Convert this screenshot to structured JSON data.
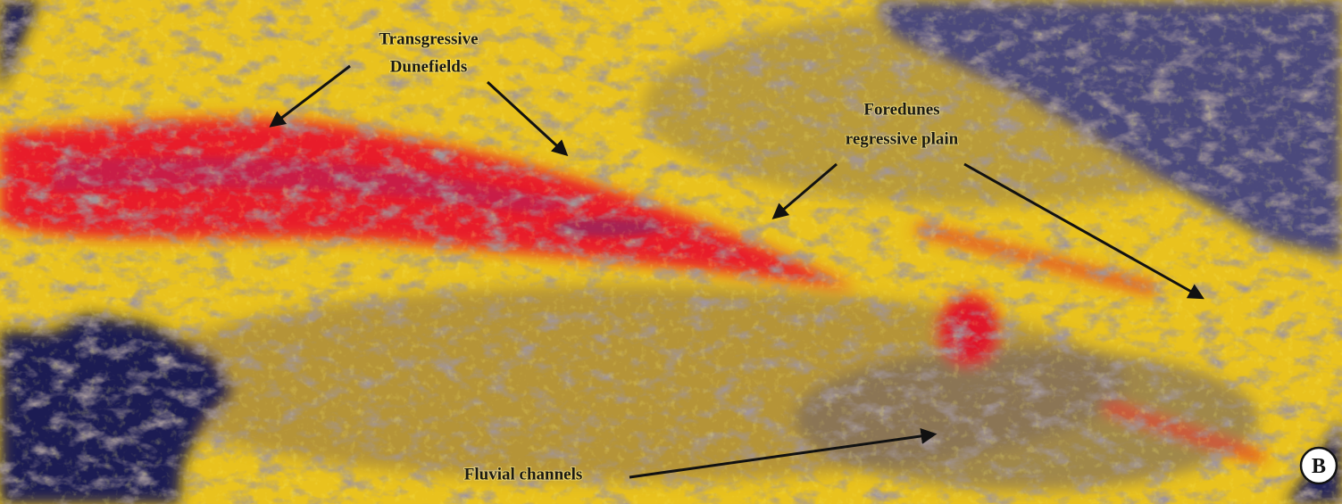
{
  "labels": [
    {
      "lines": [
        "Transgressive",
        "Dunefields"
      ]
    },
    {
      "lines": [
        "Foredunes",
        "regressive plain"
      ]
    },
    {
      "lines": [
        "Fluvial channels"
      ]
    }
  ],
  "panel_letter": "B"
}
